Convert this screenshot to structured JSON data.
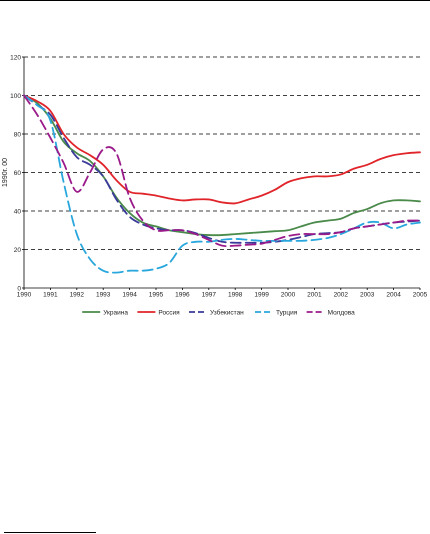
{
  "chart_data": {
    "type": "line",
    "ylabel": "1990г. 00",
    "ylim": [
      0,
      120
    ],
    "yticks": [
      0,
      20,
      40,
      60,
      80,
      100,
      120
    ],
    "xlim": [
      1990,
      2005
    ],
    "xticks": [
      "1990",
      "1991",
      "1992",
      "1993",
      "1994",
      "1995",
      "1996",
      "1997",
      "1998",
      "1999",
      "2000",
      "2001",
      "2002",
      "2003",
      "2004",
      "2005"
    ],
    "grid": "horizontal dashed",
    "legend": "bottom",
    "series": [
      {
        "name": "Украина",
        "color": "#4a8a4a",
        "dash": "solid",
        "points": [
          [
            1990,
            100
          ],
          [
            1990.5,
            96
          ],
          [
            1991,
            88
          ],
          [
            1991.5,
            76
          ],
          [
            1992,
            70
          ],
          [
            1992.5,
            66
          ],
          [
            1993,
            58
          ],
          [
            1993.5,
            47
          ],
          [
            1994,
            39
          ],
          [
            1994.5,
            34
          ],
          [
            1995,
            32
          ],
          [
            1995.5,
            30
          ],
          [
            1996,
            29
          ],
          [
            1996.5,
            28
          ],
          [
            1997,
            27.5
          ],
          [
            1997.5,
            27.5
          ],
          [
            1998,
            28
          ],
          [
            1998.5,
            28.5
          ],
          [
            1999,
            29
          ],
          [
            1999.5,
            29.5
          ],
          [
            2000,
            30
          ],
          [
            2000.5,
            32
          ],
          [
            2001,
            34
          ],
          [
            2001.5,
            35
          ],
          [
            2002,
            36
          ],
          [
            2002.5,
            39
          ],
          [
            2003,
            41
          ],
          [
            2003.5,
            44
          ],
          [
            2004,
            45.5
          ],
          [
            2004.5,
            45.5
          ],
          [
            2005,
            45
          ]
        ]
      },
      {
        "name": "Россия",
        "color": "#e0242a",
        "dash": "solid",
        "points": [
          [
            1990,
            100
          ],
          [
            1990.5,
            97
          ],
          [
            1991,
            92
          ],
          [
            1991.5,
            80
          ],
          [
            1992,
            73
          ],
          [
            1992.5,
            69
          ],
          [
            1993,
            64
          ],
          [
            1993.5,
            56
          ],
          [
            1994,
            50
          ],
          [
            1994.5,
            49
          ],
          [
            1995,
            48
          ],
          [
            1995.5,
            46.5
          ],
          [
            1996,
            45.5
          ],
          [
            1996.5,
            46
          ],
          [
            1997,
            46
          ],
          [
            1997.5,
            44.5
          ],
          [
            1998,
            44
          ],
          [
            1998.5,
            46
          ],
          [
            1999,
            48
          ],
          [
            1999.5,
            51
          ],
          [
            2000,
            55
          ],
          [
            2000.5,
            57
          ],
          [
            2001,
            58
          ],
          [
            2001.5,
            58
          ],
          [
            2002,
            59
          ],
          [
            2002.5,
            62
          ],
          [
            2003,
            64
          ],
          [
            2003.5,
            67
          ],
          [
            2004,
            69
          ],
          [
            2004.5,
            70
          ],
          [
            2005,
            70.5
          ]
        ]
      },
      {
        "name": "Узбекистан",
        "color": "#3a3a9a",
        "dash": "long-dash",
        "points": [
          [
            1990,
            100
          ],
          [
            1990.5,
            95
          ],
          [
            1991,
            90
          ],
          [
            1991.5,
            78
          ],
          [
            1992,
            68
          ],
          [
            1992.5,
            64
          ],
          [
            1993,
            58
          ],
          [
            1993.5,
            46
          ],
          [
            1994,
            37
          ],
          [
            1994.5,
            33
          ],
          [
            1995,
            31
          ],
          [
            1995.5,
            30
          ],
          [
            1996,
            30
          ],
          [
            1996.5,
            28.5
          ],
          [
            1997,
            26
          ],
          [
            1997.5,
            24
          ],
          [
            1998,
            23.5
          ],
          [
            1998.5,
            23.5
          ],
          [
            1999,
            23.5
          ],
          [
            1999.5,
            24
          ],
          [
            2000,
            25
          ],
          [
            2000.5,
            26.5
          ],
          [
            2001,
            28
          ],
          [
            2001.5,
            28.5
          ],
          [
            2002,
            29
          ],
          [
            2002.5,
            31
          ],
          [
            2003,
            32
          ],
          [
            2003.5,
            33
          ],
          [
            2004,
            34
          ],
          [
            2004.5,
            34.5
          ],
          [
            2005,
            35
          ]
        ]
      },
      {
        "name": "Турция",
        "color": "#29a7dd",
        "dash": "long-dash",
        "points": [
          [
            1990,
            100
          ],
          [
            1990.5,
            95
          ],
          [
            1991,
            87
          ],
          [
            1991.5,
            55
          ],
          [
            1992,
            28
          ],
          [
            1992.5,
            15
          ],
          [
            1993,
            9
          ],
          [
            1993.5,
            8
          ],
          [
            1994,
            9
          ],
          [
            1994.5,
            9
          ],
          [
            1995,
            10
          ],
          [
            1995.5,
            13
          ],
          [
            1996,
            22
          ],
          [
            1996.5,
            24
          ],
          [
            1997,
            24
          ],
          [
            1997.5,
            25
          ],
          [
            1998,
            25.5
          ],
          [
            1998.5,
            25
          ],
          [
            1999,
            24.5
          ],
          [
            1999.5,
            24.5
          ],
          [
            2000,
            24.5
          ],
          [
            2000.5,
            24.5
          ],
          [
            2001,
            25
          ],
          [
            2001.5,
            26
          ],
          [
            2002,
            28
          ],
          [
            2002.5,
            31
          ],
          [
            2003,
            34
          ],
          [
            2003.5,
            34
          ],
          [
            2004,
            31
          ],
          [
            2004.5,
            33
          ],
          [
            2005,
            34
          ]
        ]
      },
      {
        "name": "Молдова",
        "color": "#9a1a8a",
        "dash": "long-dash",
        "points": [
          [
            1990,
            100
          ],
          [
            1990.5,
            90
          ],
          [
            1991,
            78
          ],
          [
            1991.5,
            65
          ],
          [
            1992,
            50
          ],
          [
            1992.5,
            60
          ],
          [
            1993,
            72
          ],
          [
            1993.5,
            70
          ],
          [
            1994,
            47
          ],
          [
            1994.5,
            35
          ],
          [
            1995,
            30
          ],
          [
            1995.5,
            30
          ],
          [
            1996,
            30
          ],
          [
            1996.5,
            28
          ],
          [
            1997,
            25
          ],
          [
            1997.5,
            22
          ],
          [
            1998,
            22
          ],
          [
            1998.5,
            22.5
          ],
          [
            1999,
            23
          ],
          [
            1999.5,
            25
          ],
          [
            2000,
            27
          ],
          [
            2000.5,
            28
          ],
          [
            2001,
            28
          ],
          [
            2001.5,
            28
          ],
          [
            2002,
            29
          ],
          [
            2002.5,
            31
          ],
          [
            2003,
            32
          ],
          [
            2003.5,
            33
          ],
          [
            2004,
            34
          ],
          [
            2004.5,
            35
          ],
          [
            2005,
            35
          ]
        ]
      }
    ]
  }
}
